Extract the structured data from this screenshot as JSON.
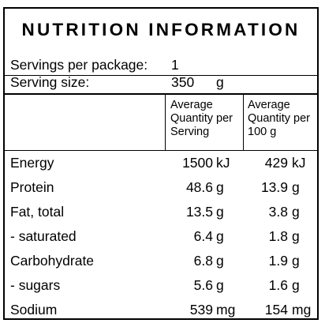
{
  "panel": {
    "title": "NUTRITION INFORMATION",
    "servings_label": "Servings per package:",
    "servings_value": "1",
    "serving_size_label": "Serving size:",
    "serving_size_value": "350",
    "serving_size_unit": "g"
  },
  "columns": {
    "per_serving": [
      "Average",
      "Quantity per",
      "Serving"
    ],
    "per_100g": [
      "Average",
      "Quantity per",
      "100 g"
    ]
  },
  "nutrients": [
    {
      "name": "Energy",
      "serving": "1500",
      "serving_unit": "kJ",
      "per100": "429",
      "per100_unit": "kJ"
    },
    {
      "name": "Protein",
      "serving": "48.6",
      "serving_unit": "g",
      "per100": "13.9",
      "per100_unit": "g"
    },
    {
      "name": "Fat, total",
      "serving": "13.5",
      "serving_unit": "g",
      "per100": "3.8",
      "per100_unit": "g"
    },
    {
      "name": "- saturated",
      "serving": "6.4",
      "serving_unit": "g",
      "per100": "1.8",
      "per100_unit": "g"
    },
    {
      "name": "Carbohydrate",
      "serving": "6.8",
      "serving_unit": "g",
      "per100": "1.9",
      "per100_unit": "g"
    },
    {
      "name": "- sugars",
      "serving": "5.6",
      "serving_unit": "g",
      "per100": "1.6",
      "per100_unit": "g"
    },
    {
      "name": "Sodium",
      "serving": "539",
      "serving_unit": "mg",
      "per100": "154",
      "per100_unit": "mg"
    }
  ]
}
